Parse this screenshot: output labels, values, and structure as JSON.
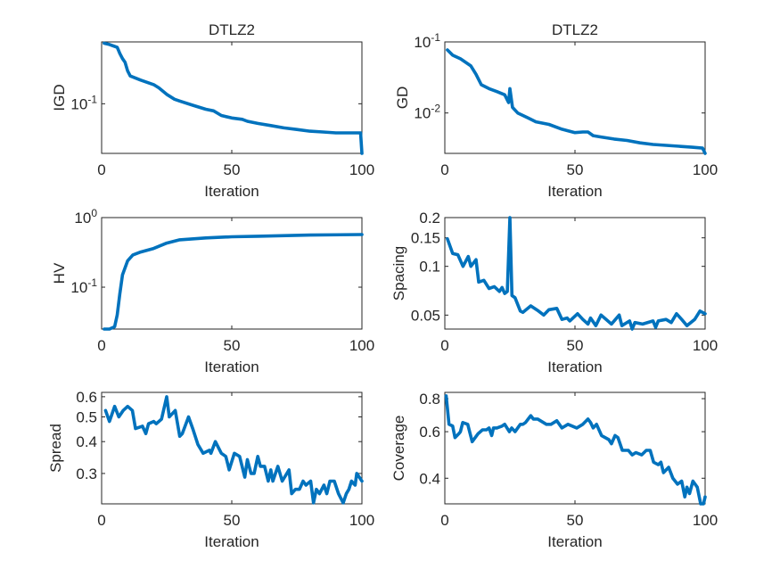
{
  "line_color": "#0072BD",
  "chart_data": [
    {
      "type": "line",
      "title": "DTLZ2",
      "xlabel": "Iteration",
      "ylabel": "IGD",
      "yscale": "log",
      "xlim": [
        0,
        100
      ],
      "ylim": [
        0.035,
        0.37
      ],
      "xticks": [
        {
          "v": 0,
          "label": "0"
        },
        {
          "v": 50,
          "label": "50"
        },
        {
          "v": 100,
          "label": "100"
        }
      ],
      "yticks": [
        {
          "v": 0.1,
          "base": "10",
          "exp": "-1"
        }
      ],
      "points": [
        [
          1,
          0.36
        ],
        [
          3,
          0.35
        ],
        [
          6,
          0.33
        ],
        [
          7,
          0.29
        ],
        [
          8,
          0.26
        ],
        [
          9,
          0.24
        ],
        [
          10,
          0.2
        ],
        [
          11,
          0.18
        ],
        [
          15,
          0.165
        ],
        [
          20,
          0.15
        ],
        [
          22,
          0.14
        ],
        [
          25,
          0.122
        ],
        [
          28,
          0.11
        ],
        [
          30,
          0.106
        ],
        [
          35,
          0.097
        ],
        [
          40,
          0.089
        ],
        [
          43,
          0.086
        ],
        [
          46,
          0.078
        ],
        [
          50,
          0.074
        ],
        [
          54,
          0.072
        ],
        [
          56,
          0.069
        ],
        [
          60,
          0.066
        ],
        [
          65,
          0.063
        ],
        [
          70,
          0.06
        ],
        [
          75,
          0.058
        ],
        [
          80,
          0.056
        ],
        [
          85,
          0.055
        ],
        [
          90,
          0.054
        ],
        [
          99.5,
          0.054
        ],
        [
          100,
          0.035
        ]
      ]
    },
    {
      "type": "line",
      "title": "DTLZ2",
      "xlabel": "Iteration",
      "ylabel": "GD",
      "yscale": "log",
      "xlim": [
        0,
        100
      ],
      "ylim": [
        0.0027,
        0.1
      ],
      "xticks": [
        {
          "v": 0,
          "label": "0"
        },
        {
          "v": 50,
          "label": "50"
        },
        {
          "v": 100,
          "label": "100"
        }
      ],
      "yticks": [
        {
          "v": 0.1,
          "base": "10",
          "exp": "-1"
        },
        {
          "v": 0.01,
          "base": "10",
          "exp": "-2"
        }
      ],
      "points": [
        [
          1,
          0.077
        ],
        [
          3,
          0.065
        ],
        [
          6,
          0.058
        ],
        [
          10,
          0.046
        ],
        [
          12,
          0.035
        ],
        [
          14,
          0.025
        ],
        [
          17,
          0.022
        ],
        [
          20,
          0.02
        ],
        [
          23,
          0.018
        ],
        [
          24.5,
          0.014
        ],
        [
          25,
          0.022
        ],
        [
          26,
          0.012
        ],
        [
          28,
          0.01
        ],
        [
          32,
          0.0085
        ],
        [
          35,
          0.0075
        ],
        [
          40,
          0.0069
        ],
        [
          45,
          0.0059
        ],
        [
          50,
          0.0053
        ],
        [
          53,
          0.0054
        ],
        [
          55,
          0.0054
        ],
        [
          57,
          0.0048
        ],
        [
          60,
          0.0046
        ],
        [
          65,
          0.0043
        ],
        [
          70,
          0.0041
        ],
        [
          75,
          0.0038
        ],
        [
          80,
          0.0036
        ],
        [
          85,
          0.0035
        ],
        [
          90,
          0.0034
        ],
        [
          95,
          0.0033
        ],
        [
          99,
          0.0032
        ],
        [
          100,
          0.0026
        ]
      ]
    },
    {
      "type": "line",
      "title": "",
      "xlabel": "Iteration",
      "ylabel": "HV",
      "yscale": "log",
      "xlim": [
        0,
        100
      ],
      "ylim": [
        0.025,
        1
      ],
      "xticks": [
        {
          "v": 0,
          "label": "0"
        },
        {
          "v": 50,
          "label": "50"
        },
        {
          "v": 100,
          "label": "100"
        }
      ],
      "yticks": [
        {
          "v": 1,
          "base": "10",
          "exp": "0"
        },
        {
          "v": 0.1,
          "base": "10",
          "exp": "-1"
        }
      ],
      "points": [
        [
          1,
          0.025
        ],
        [
          3,
          0.025
        ],
        [
          5,
          0.027
        ],
        [
          6,
          0.04
        ],
        [
          7,
          0.08
        ],
        [
          8,
          0.15
        ],
        [
          10,
          0.24
        ],
        [
          12,
          0.29
        ],
        [
          15,
          0.32
        ],
        [
          20,
          0.36
        ],
        [
          25,
          0.43
        ],
        [
          30,
          0.48
        ],
        [
          40,
          0.51
        ],
        [
          50,
          0.53
        ],
        [
          60,
          0.54
        ],
        [
          80,
          0.56
        ],
        [
          100,
          0.57
        ]
      ]
    },
    {
      "type": "line",
      "title": "",
      "xlabel": "Iteration",
      "ylabel": "Spacing",
      "yscale": "log",
      "xlim": [
        0,
        100
      ],
      "ylim": [
        0.041,
        0.2
      ],
      "xticks": [
        {
          "v": 0,
          "label": "0"
        },
        {
          "v": 50,
          "label": "50"
        },
        {
          "v": 100,
          "label": "100"
        }
      ],
      "yticks": [
        {
          "v": 0.2,
          "label": "0.2"
        },
        {
          "v": 0.15,
          "label": "0.15"
        },
        {
          "v": 0.1,
          "label": "0.1"
        },
        {
          "v": 0.05,
          "label": "0.05"
        }
      ],
      "points": [
        [
          1,
          0.148
        ],
        [
          3,
          0.12
        ],
        [
          5,
          0.118
        ],
        [
          7,
          0.1
        ],
        [
          9,
          0.115
        ],
        [
          10,
          0.1
        ],
        [
          12,
          0.11
        ],
        [
          13,
          0.08
        ],
        [
          15,
          0.082
        ],
        [
          17,
          0.073
        ],
        [
          19,
          0.075
        ],
        [
          21,
          0.07
        ],
        [
          22,
          0.074
        ],
        [
          23,
          0.068
        ],
        [
          24,
          0.07
        ],
        [
          25,
          0.2
        ],
        [
          25.8,
          0.066
        ],
        [
          27,
          0.064
        ],
        [
          29,
          0.053
        ],
        [
          30,
          0.052
        ],
        [
          33,
          0.057
        ],
        [
          36,
          0.053
        ],
        [
          38,
          0.05
        ],
        [
          40,
          0.054
        ],
        [
          43,
          0.055
        ],
        [
          45,
          0.047
        ],
        [
          47,
          0.048
        ],
        [
          48,
          0.046
        ],
        [
          51,
          0.051
        ],
        [
          53,
          0.047
        ],
        [
          55,
          0.044
        ],
        [
          56,
          0.048
        ],
        [
          58,
          0.043
        ],
        [
          60,
          0.05
        ],
        [
          62,
          0.047
        ],
        [
          64,
          0.044
        ],
        [
          67,
          0.05
        ],
        [
          68,
          0.043
        ],
        [
          71,
          0.046
        ],
        [
          72,
          0.041
        ],
        [
          73,
          0.045
        ],
        [
          76,
          0.044
        ],
        [
          80,
          0.046
        ],
        [
          81,
          0.042
        ],
        [
          82,
          0.046
        ],
        [
          85,
          0.047
        ],
        [
          87,
          0.045
        ],
        [
          89,
          0.051
        ],
        [
          91,
          0.047
        ],
        [
          93,
          0.043
        ],
        [
          96,
          0.047
        ],
        [
          98,
          0.053
        ],
        [
          100,
          0.051
        ]
      ]
    },
    {
      "type": "line",
      "title": "",
      "xlabel": "Iteration",
      "ylabel": "Spread",
      "yscale": "log",
      "xlim": [
        0,
        100
      ],
      "ylim": [
        0.228,
        0.624
      ],
      "xticks": [
        {
          "v": 0,
          "label": "0"
        },
        {
          "v": 50,
          "label": "50"
        },
        {
          "v": 100,
          "label": "100"
        }
      ],
      "yticks": [
        {
          "v": 0.6,
          "label": "0.6"
        },
        {
          "v": 0.5,
          "label": "0.5"
        },
        {
          "v": 0.4,
          "label": "0.4"
        },
        {
          "v": 0.3,
          "label": "0.3"
        }
      ],
      "points": [
        [
          1.5,
          0.53
        ],
        [
          3,
          0.48
        ],
        [
          5,
          0.55
        ],
        [
          6.6,
          0.5
        ],
        [
          8.3,
          0.53
        ],
        [
          10,
          0.55
        ],
        [
          11.8,
          0.53
        ],
        [
          13,
          0.45
        ],
        [
          15.7,
          0.46
        ],
        [
          17,
          0.43
        ],
        [
          18,
          0.47
        ],
        [
          20,
          0.48
        ],
        [
          21,
          0.47
        ],
        [
          23,
          0.49
        ],
        [
          25,
          0.6
        ],
        [
          26,
          0.5
        ],
        [
          28.3,
          0.53
        ],
        [
          30,
          0.42
        ],
        [
          31,
          0.43
        ],
        [
          33.4,
          0.5
        ],
        [
          35,
          0.45
        ],
        [
          37,
          0.39
        ],
        [
          39,
          0.36
        ],
        [
          41.4,
          0.37
        ],
        [
          42,
          0.36
        ],
        [
          43.7,
          0.4
        ],
        [
          46,
          0.36
        ],
        [
          47.7,
          0.35
        ],
        [
          49,
          0.31
        ],
        [
          51,
          0.36
        ],
        [
          53,
          0.35
        ],
        [
          55,
          0.29
        ],
        [
          56,
          0.34
        ],
        [
          57.4,
          0.3
        ],
        [
          58.6,
          0.3
        ],
        [
          60,
          0.35
        ],
        [
          61,
          0.32
        ],
        [
          62.6,
          0.32
        ],
        [
          64,
          0.28
        ],
        [
          65,
          0.31
        ],
        [
          65.8,
          0.28
        ],
        [
          67.7,
          0.32
        ],
        [
          69.4,
          0.28
        ],
        [
          72,
          0.31
        ],
        [
          73,
          0.25
        ],
        [
          74.5,
          0.26
        ],
        [
          76,
          0.26
        ],
        [
          77.4,
          0.28
        ],
        [
          78.5,
          0.27
        ],
        [
          80.3,
          0.28
        ],
        [
          81.4,
          0.23
        ],
        [
          82.5,
          0.26
        ],
        [
          83.7,
          0.25
        ],
        [
          85.4,
          0.27
        ],
        [
          86.5,
          0.25
        ],
        [
          87.7,
          0.28
        ],
        [
          89.4,
          0.28
        ],
        [
          91,
          0.25
        ],
        [
          92.8,
          0.23
        ],
        [
          94,
          0.25
        ],
        [
          95,
          0.26
        ],
        [
          96,
          0.28
        ],
        [
          97.4,
          0.27
        ],
        [
          98,
          0.3
        ],
        [
          100,
          0.28
        ]
      ]
    },
    {
      "type": "line",
      "title": "",
      "xlabel": "Iteration",
      "ylabel": "Coverage",
      "yscale": "log",
      "xlim": [
        0,
        100
      ],
      "ylim": [
        0.32,
        0.845
      ],
      "xticks": [
        {
          "v": 0,
          "label": "0"
        },
        {
          "v": 50,
          "label": "50"
        },
        {
          "v": 100,
          "label": "100"
        }
      ],
      "yticks": [
        {
          "v": 0.8,
          "label": "0.8"
        },
        {
          "v": 0.6,
          "label": "0.6"
        },
        {
          "v": 0.4,
          "label": "0.4"
        }
      ],
      "points": [
        [
          0.5,
          0.82
        ],
        [
          1.6,
          0.64
        ],
        [
          3,
          0.63
        ],
        [
          3.9,
          0.57
        ],
        [
          5.4,
          0.59
        ],
        [
          6,
          0.6
        ],
        [
          6.9,
          0.65
        ],
        [
          8.8,
          0.64
        ],
        [
          10.5,
          0.55
        ],
        [
          12.8,
          0.59
        ],
        [
          14.5,
          0.61
        ],
        [
          16,
          0.61
        ],
        [
          17,
          0.62
        ],
        [
          18,
          0.58
        ],
        [
          18.7,
          0.62
        ],
        [
          20,
          0.62
        ],
        [
          22,
          0.63
        ],
        [
          23,
          0.64
        ],
        [
          24.8,
          0.6
        ],
        [
          25.7,
          0.62
        ],
        [
          27,
          0.6
        ],
        [
          29,
          0.64
        ],
        [
          30,
          0.64
        ],
        [
          31,
          0.65
        ],
        [
          33,
          0.69
        ],
        [
          34,
          0.67
        ],
        [
          35.7,
          0.67
        ],
        [
          39,
          0.64
        ],
        [
          40.8,
          0.64
        ],
        [
          43,
          0.66
        ],
        [
          45,
          0.62
        ],
        [
          47.3,
          0.64
        ],
        [
          50.7,
          0.62
        ],
        [
          53,
          0.64
        ],
        [
          55,
          0.67
        ],
        [
          56,
          0.65
        ],
        [
          57,
          0.62
        ],
        [
          58.3,
          0.64
        ],
        [
          60.2,
          0.58
        ],
        [
          63,
          0.56
        ],
        [
          64,
          0.54
        ],
        [
          65.4,
          0.58
        ],
        [
          66.5,
          0.57
        ],
        [
          68.2,
          0.51
        ],
        [
          70.5,
          0.51
        ],
        [
          72,
          0.49
        ],
        [
          73.4,
          0.5
        ],
        [
          75.6,
          0.49
        ],
        [
          77.4,
          0.51
        ],
        [
          78.9,
          0.51
        ],
        [
          80.2,
          0.46
        ],
        [
          82,
          0.45
        ],
        [
          83,
          0.46
        ],
        [
          84,
          0.42
        ],
        [
          86,
          0.44
        ],
        [
          87.6,
          0.4
        ],
        [
          89.4,
          0.38
        ],
        [
          91,
          0.39
        ],
        [
          92.2,
          0.34
        ],
        [
          93,
          0.37
        ],
        [
          94,
          0.35
        ],
        [
          95.3,
          0.39
        ],
        [
          97,
          0.37
        ],
        [
          98.3,
          0.31
        ],
        [
          99.4,
          0.31
        ],
        [
          100,
          0.34
        ]
      ]
    }
  ]
}
